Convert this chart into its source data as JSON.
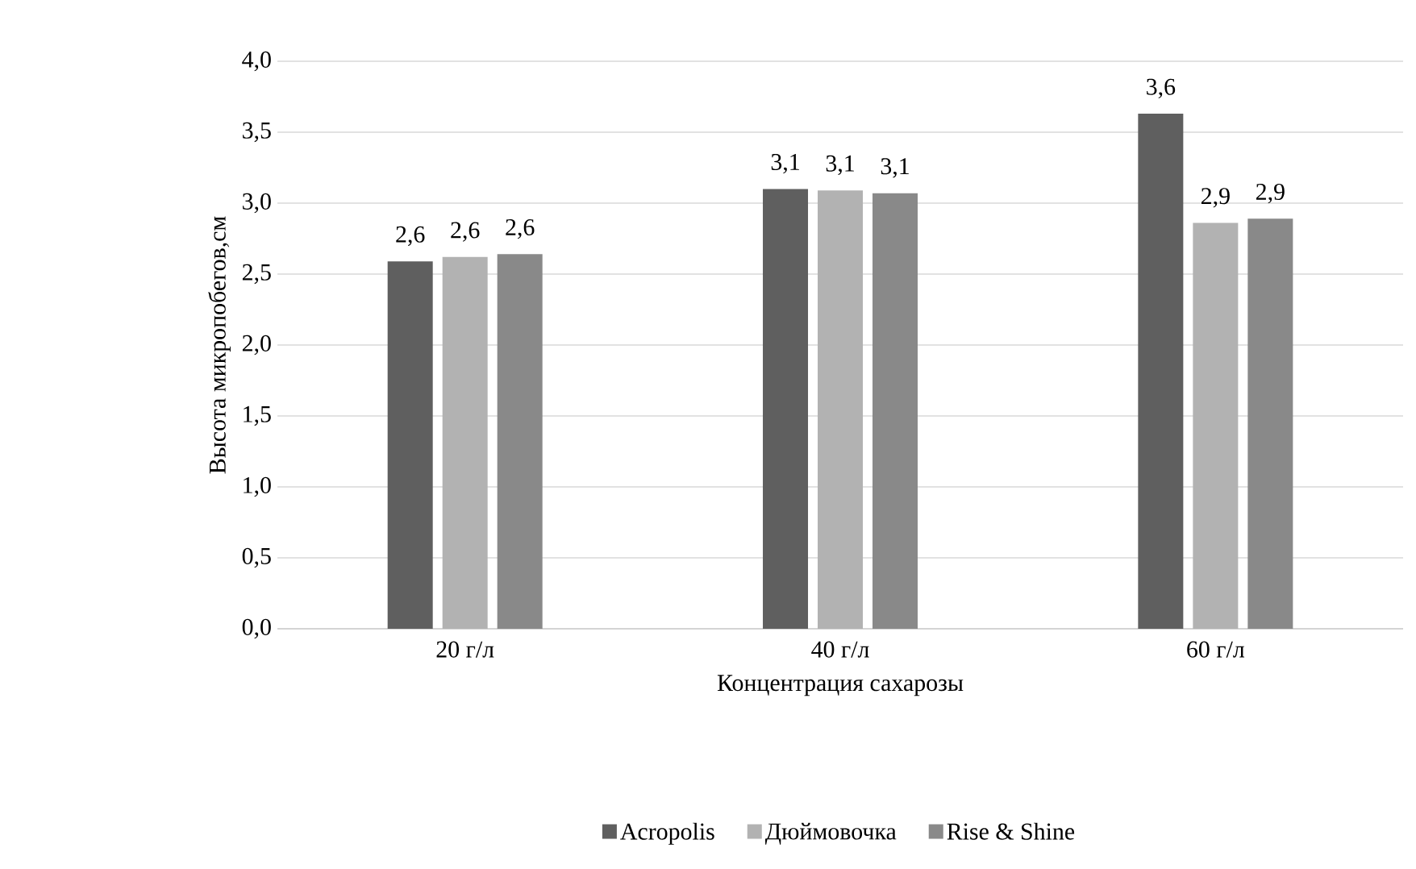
{
  "chart_data": {
    "type": "bar",
    "xlabel": "Концентрация сахарозы",
    "ylabel": "Высота микропобегов,см",
    "categories": [
      "20 г/л",
      "40 г/л",
      "60 г/л"
    ],
    "series": [
      {
        "name": "Acropolis",
        "color": "#5f5f5f",
        "values": [
          2.59,
          3.1,
          3.63
        ],
        "value_labels": [
          "2,6",
          "3,1",
          "3,6"
        ]
      },
      {
        "name": "Дюймовочка",
        "color": "#b2b2b2",
        "values": [
          2.62,
          3.09,
          2.86
        ],
        "value_labels": [
          "2,6",
          "3,1",
          "2,9"
        ]
      },
      {
        "name": "Rise & Shine",
        "color": "#898989",
        "values": [
          2.64,
          3.07,
          2.89
        ],
        "value_labels": [
          "2,6",
          "3,1",
          "2,9"
        ]
      }
    ],
    "ylim": [
      0,
      4
    ],
    "yticks": [
      {
        "value": 0,
        "label": "0,0"
      },
      {
        "value": 0.5,
        "label": "0,5"
      },
      {
        "value": 1,
        "label": "1,0"
      },
      {
        "value": 1.5,
        "label": "1,5"
      },
      {
        "value": 2,
        "label": "2,0"
      },
      {
        "value": 2.5,
        "label": "2,5"
      },
      {
        "value": 3,
        "label": "3,0"
      },
      {
        "value": 3.5,
        "label": "3,5"
      },
      {
        "value": 4,
        "label": "4,0"
      }
    ],
    "grid": "y",
    "legend": "bottom"
  }
}
